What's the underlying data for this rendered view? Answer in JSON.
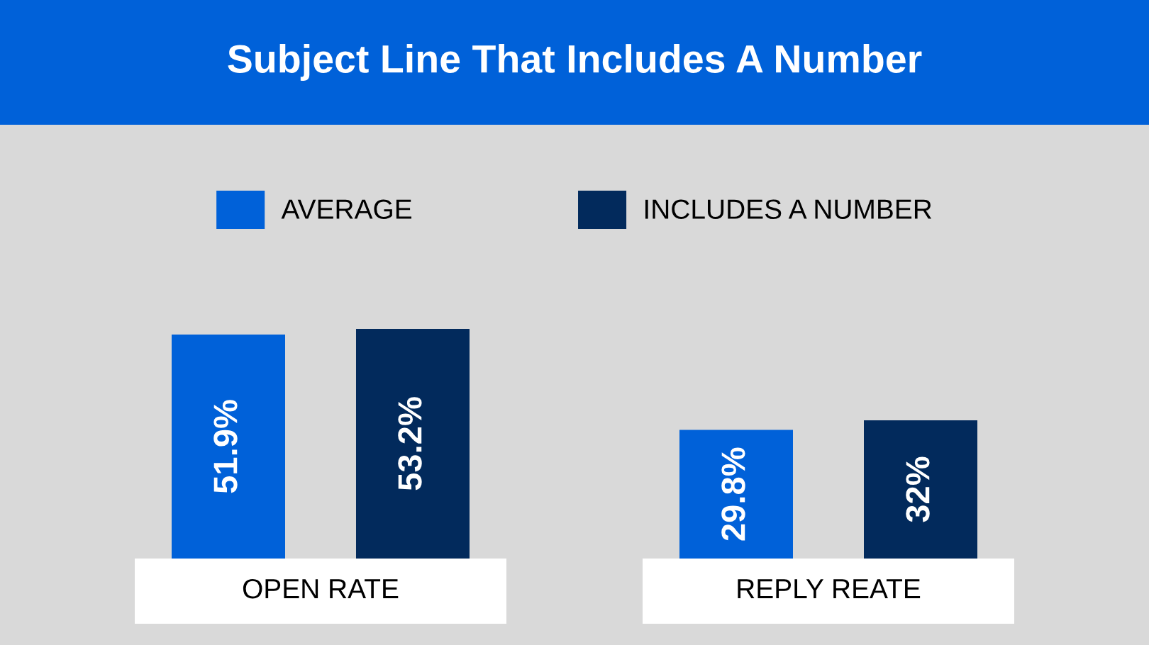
{
  "chart_data": {
    "type": "bar",
    "title": "Subject Line That Includes A Number",
    "categories": [
      "OPEN RATE",
      "REPLY REATE"
    ],
    "series": [
      {
        "name": "AVERAGE",
        "color": "#0061d9",
        "values": [
          51.9,
          29.8
        ],
        "value_labels": [
          "51.9%",
          "29.8%"
        ]
      },
      {
        "name": "INCLUDES A NUMBER",
        "color": "#022a5c",
        "values": [
          53.2,
          32
        ],
        "value_labels": [
          "53.2%",
          "32%"
        ]
      }
    ],
    "legend": "top",
    "tick_labels": "x"
  }
}
